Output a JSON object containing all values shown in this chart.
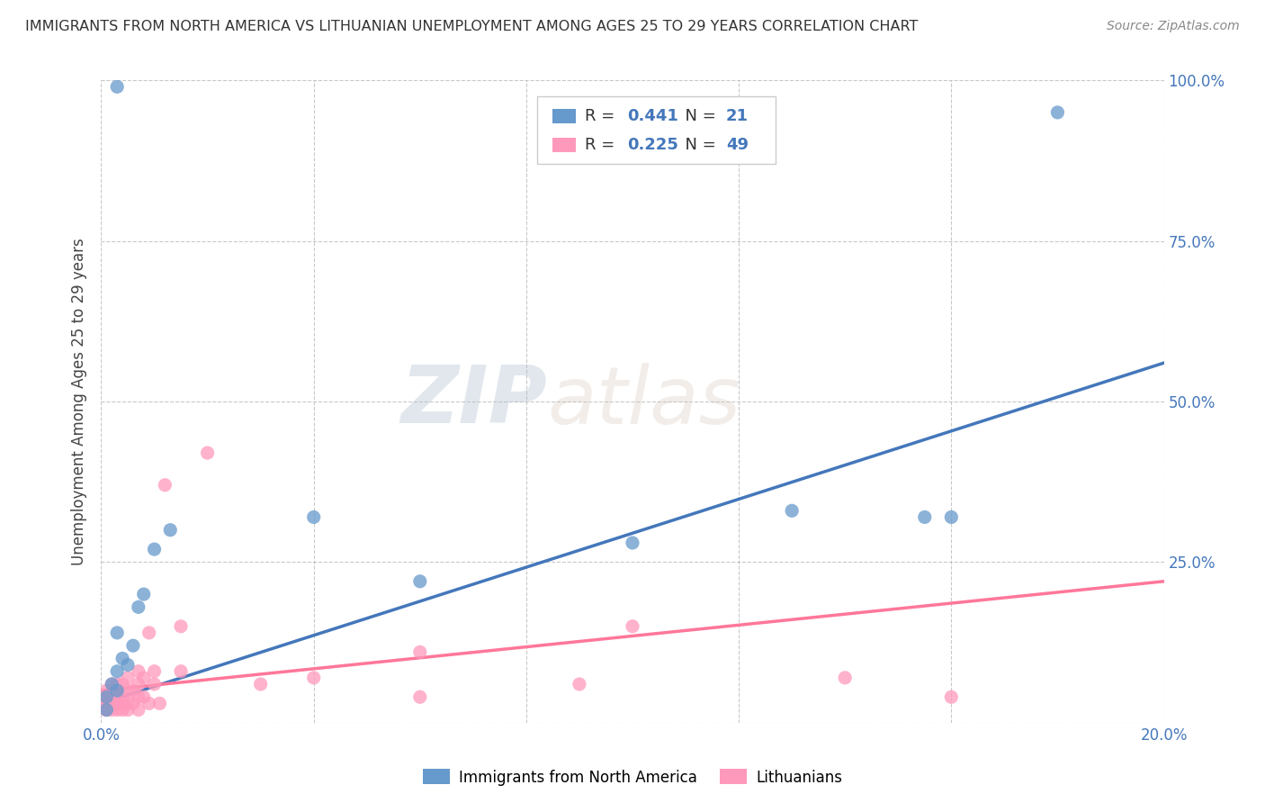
{
  "title": "IMMIGRANTS FROM NORTH AMERICA VS LITHUANIAN UNEMPLOYMENT AMONG AGES 25 TO 29 YEARS CORRELATION CHART",
  "source": "Source: ZipAtlas.com",
  "ylabel": "Unemployment Among Ages 25 to 29 years",
  "x_min": 0.0,
  "x_max": 0.2,
  "y_min": 0.0,
  "y_max": 1.0,
  "x_ticks": [
    0.0,
    0.04,
    0.08,
    0.12,
    0.16,
    0.2
  ],
  "x_tick_labels": [
    "0.0%",
    "",
    "",
    "",
    "",
    "20.0%"
  ],
  "y_ticks": [
    0.0,
    0.25,
    0.5,
    0.75,
    1.0
  ],
  "y_tick_labels": [
    "",
    "25.0%",
    "50.0%",
    "75.0%",
    "100.0%"
  ],
  "blue_color": "#6699CC",
  "pink_color": "#FF99BB",
  "blue_line_color": "#4477BB",
  "pink_line_color": "#FF7799",
  "blue_R": 0.441,
  "blue_N": 21,
  "pink_R": 0.225,
  "pink_N": 49,
  "blue_scatter_x": [
    0.001,
    0.001,
    0.002,
    0.003,
    0.003,
    0.003,
    0.004,
    0.005,
    0.006,
    0.007,
    0.008,
    0.01,
    0.013,
    0.04,
    0.06,
    0.1,
    0.13,
    0.155,
    0.16,
    0.18,
    0.003
  ],
  "blue_scatter_y": [
    0.02,
    0.04,
    0.06,
    0.05,
    0.08,
    0.14,
    0.1,
    0.09,
    0.12,
    0.18,
    0.2,
    0.27,
    0.3,
    0.32,
    0.22,
    0.28,
    0.33,
    0.32,
    0.32,
    0.95,
    0.99
  ],
  "pink_scatter_x": [
    0.001,
    0.001,
    0.001,
    0.001,
    0.001,
    0.001,
    0.001,
    0.002,
    0.002,
    0.002,
    0.002,
    0.003,
    0.003,
    0.003,
    0.003,
    0.003,
    0.004,
    0.004,
    0.004,
    0.004,
    0.005,
    0.005,
    0.005,
    0.005,
    0.006,
    0.006,
    0.007,
    0.007,
    0.007,
    0.007,
    0.008,
    0.008,
    0.009,
    0.009,
    0.01,
    0.01,
    0.011,
    0.012,
    0.015,
    0.015,
    0.02,
    0.03,
    0.04,
    0.06,
    0.06,
    0.09,
    0.1,
    0.14,
    0.16
  ],
  "pink_scatter_y": [
    0.02,
    0.02,
    0.03,
    0.03,
    0.04,
    0.04,
    0.05,
    0.02,
    0.03,
    0.04,
    0.06,
    0.02,
    0.03,
    0.04,
    0.05,
    0.06,
    0.02,
    0.03,
    0.04,
    0.06,
    0.02,
    0.03,
    0.05,
    0.07,
    0.03,
    0.05,
    0.02,
    0.04,
    0.06,
    0.08,
    0.04,
    0.07,
    0.03,
    0.14,
    0.06,
    0.08,
    0.03,
    0.37,
    0.08,
    0.15,
    0.42,
    0.06,
    0.07,
    0.11,
    0.04,
    0.06,
    0.15,
    0.07,
    0.04
  ],
  "watermark_zip": "ZIP",
  "watermark_atlas": "atlas",
  "legend_label_blue": "Immigrants from North America",
  "legend_label_pink": "Lithuanians",
  "bg_color": "#FFFFFF",
  "grid_color": "#BBBBBB",
  "title_color": "#333333",
  "axis_label_color": "#444444",
  "tick_label_color": "#4477BB",
  "value_color": "#4477BB",
  "label_color": "#333333"
}
